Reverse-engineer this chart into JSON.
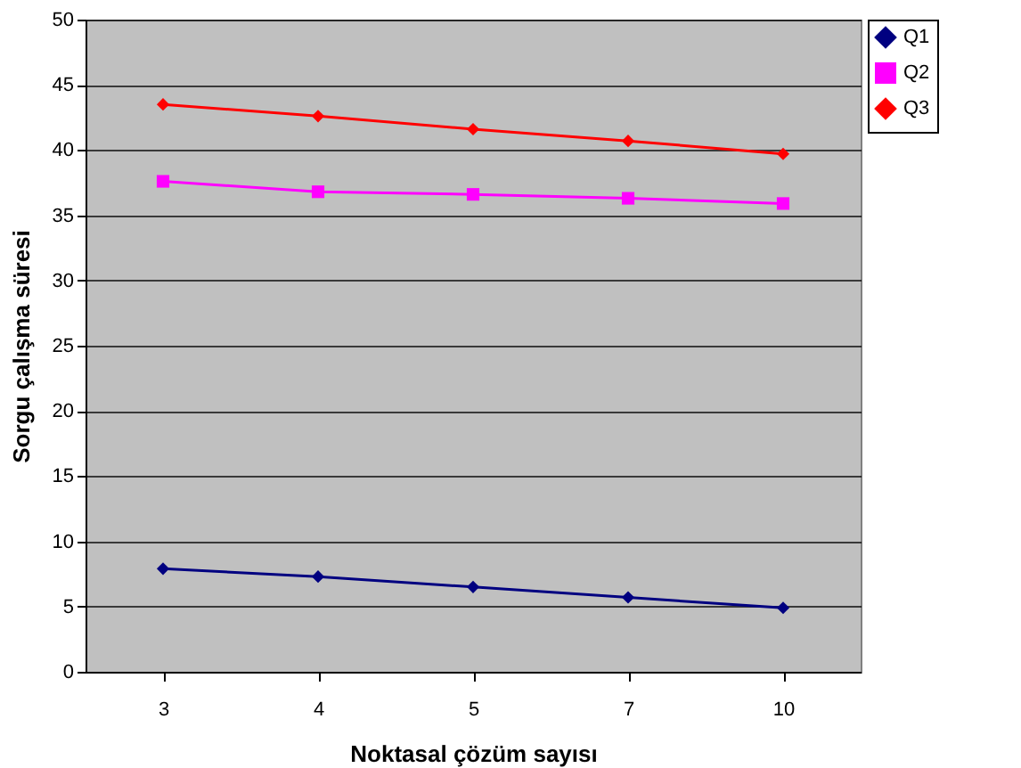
{
  "chart_data": {
    "type": "line",
    "xlabel": "Noktasal çözüm sayısı",
    "ylabel": "Sorgu çalışma süresi",
    "categories": [
      "3",
      "4",
      "5",
      "7",
      "10"
    ],
    "series": [
      {
        "name": "Q1",
        "color": "#000080",
        "marker": "diamond",
        "values": [
          7.9,
          7.3,
          6.5,
          5.7,
          4.9
        ]
      },
      {
        "name": "Q2",
        "color": "#ff00ff",
        "marker": "square",
        "values": [
          37.6,
          36.8,
          36.6,
          36.3,
          35.9
        ]
      },
      {
        "name": "Q3",
        "color": "#ff0000",
        "marker": "diamond",
        "values": [
          43.5,
          42.6,
          41.6,
          40.7,
          39.7
        ]
      }
    ],
    "ylim": [
      0,
      50
    ],
    "yticks": [
      0,
      5,
      10,
      15,
      20,
      25,
      30,
      35,
      40,
      45,
      50
    ],
    "grid": "y",
    "legend": "top right",
    "line_style": "solid"
  }
}
